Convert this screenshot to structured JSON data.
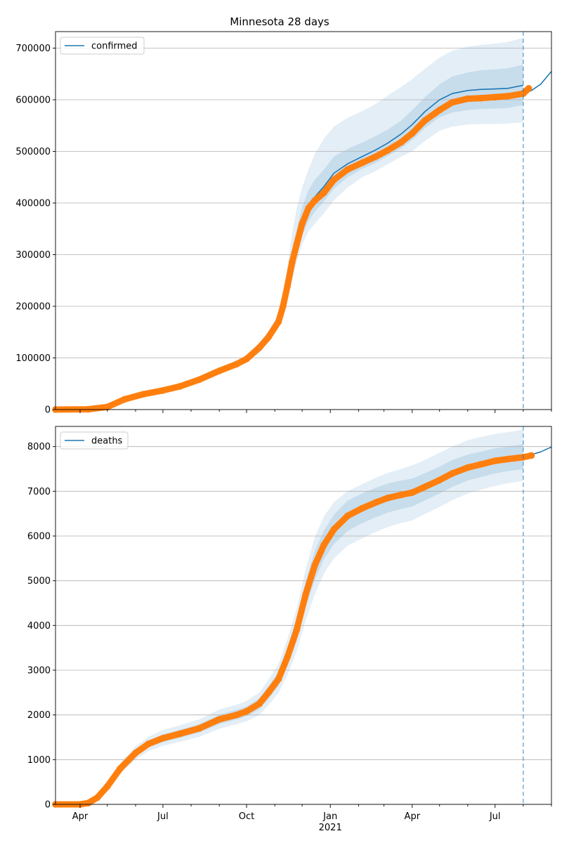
{
  "title": "Minnesota 28 days",
  "colors": {
    "model": "#1f77b4",
    "observed": "#ff7f0e",
    "band": "#1f77b4",
    "grid": "#b0b0b0",
    "today_line": "#1f77b4"
  },
  "x_axis": {
    "ticks": [
      {
        "label": "Apr",
        "date": "2020-04-01"
      },
      {
        "label": "Jul",
        "date": "2020-07-01"
      },
      {
        "label": "Oct",
        "date": "2020-10-01"
      },
      {
        "label": "Jan",
        "date": "2021-01-01"
      },
      {
        "label": "Apr",
        "date": "2021-04-01"
      },
      {
        "label": "Jul",
        "date": "2021-07-01"
      }
    ],
    "year_label": "2021",
    "range": [
      "2020-03-05",
      "2021-09-01"
    ],
    "today": "2021-08-01"
  },
  "chart_data": [
    {
      "type": "line",
      "name": "confirmed",
      "legend": "confirmed",
      "legend_position": "upper-left",
      "grid": "horizontal",
      "ylim": [
        0,
        732000
      ],
      "yticks": [
        0,
        100000,
        200000,
        300000,
        400000,
        500000,
        600000,
        700000
      ],
      "ytick_labels": [
        "0",
        "100000",
        "200000",
        "300000",
        "400000",
        "500000",
        "600000",
        "700000"
      ],
      "observed": {
        "x": [
          "2020-03-05",
          "2020-04-10",
          "2020-05-01",
          "2020-05-20",
          "2020-06-10",
          "2020-07-01",
          "2020-07-20",
          "2020-08-10",
          "2020-09-01",
          "2020-09-20",
          "2020-10-01",
          "2020-10-15",
          "2020-10-25",
          "2020-11-05",
          "2020-11-10",
          "2020-11-15",
          "2020-11-20",
          "2020-11-25",
          "2020-12-01",
          "2020-12-08",
          "2020-12-15",
          "2020-12-25",
          "2021-01-05",
          "2021-01-20",
          "2021-02-05",
          "2021-02-20",
          "2021-03-05",
          "2021-03-20",
          "2021-04-01",
          "2021-04-15",
          "2021-05-01",
          "2021-05-15",
          "2021-06-01",
          "2021-06-15",
          "2021-07-01",
          "2021-07-15",
          "2021-08-01",
          "2021-08-07"
        ],
        "y": [
          0,
          500,
          5000,
          20000,
          30000,
          37000,
          45000,
          58000,
          75000,
          88000,
          98000,
          120000,
          140000,
          170000,
          200000,
          240000,
          285000,
          320000,
          360000,
          390000,
          405000,
          420000,
          445000,
          465000,
          478000,
          490000,
          502000,
          518000,
          535000,
          560000,
          580000,
          595000,
          602000,
          603000,
          605000,
          607000,
          612000,
          622000
        ]
      },
      "model": {
        "x": [
          "2020-03-05",
          "2020-04-10",
          "2020-05-01",
          "2020-05-20",
          "2020-06-10",
          "2020-07-01",
          "2020-07-20",
          "2020-08-10",
          "2020-09-01",
          "2020-09-20",
          "2020-10-01",
          "2020-10-15",
          "2020-10-25",
          "2020-11-05",
          "2020-11-10",
          "2020-11-15",
          "2020-11-20",
          "2020-11-25",
          "2020-12-01",
          "2020-12-08",
          "2020-12-15",
          "2020-12-25",
          "2021-01-05",
          "2021-01-20",
          "2021-02-05",
          "2021-02-20",
          "2021-03-05",
          "2021-03-20",
          "2021-04-01",
          "2021-04-15",
          "2021-05-01",
          "2021-05-15",
          "2021-06-01",
          "2021-06-15",
          "2021-07-01",
          "2021-07-15",
          "2021-08-01"
        ],
        "y": [
          0,
          500,
          5000,
          20000,
          30000,
          37000,
          45000,
          58000,
          75000,
          88000,
          98000,
          120000,
          140000,
          170000,
          200000,
          240000,
          285000,
          320000,
          360000,
          393000,
          412000,
          432000,
          458000,
          476000,
          490000,
          503000,
          516000,
          534000,
          552000,
          577000,
          600000,
          612000,
          618000,
          620000,
          621000,
          622000,
          628000
        ]
      },
      "forecast": {
        "x": [
          "2021-08-01",
          "2021-08-10",
          "2021-08-20",
          "2021-09-01"
        ],
        "y": [
          611000,
          618000,
          630000,
          655000
        ]
      },
      "bands": [
        {
          "level": "outer",
          "lower": [
            0,
            400,
            4000,
            17000,
            26000,
            33000,
            41000,
            53000,
            69000,
            82000,
            92000,
            110000,
            130000,
            158000,
            185000,
            215000,
            250000,
            285000,
            320000,
            345000,
            360000,
            380000,
            405000,
            430000,
            450000,
            462000,
            475000,
            490000,
            500000,
            520000,
            540000,
            548000,
            552000,
            553000,
            553000,
            554000,
            556000
          ]
        },
        {
          "level": "outer",
          "upper": [
            0,
            600,
            6000,
            23000,
            34000,
            41000,
            50000,
            64000,
            82000,
            95000,
            106000,
            130000,
            152000,
            185000,
            225000,
            280000,
            340000,
            390000,
            430000,
            465000,
            495000,
            525000,
            548000,
            565000,
            578000,
            592000,
            608000,
            625000,
            640000,
            660000,
            682000,
            695000,
            703000,
            706000,
            709000,
            712000,
            720000
          ]
        },
        {
          "level": "mid",
          "lower": [
            0,
            450,
            4500,
            18500,
            28000,
            35000,
            43000,
            55500,
            72000,
            85000,
            95000,
            115000,
            135000,
            164000,
            192000,
            228000,
            265000,
            300000,
            338000,
            365000,
            383000,
            403000,
            428000,
            450000,
            466000,
            478000,
            491000,
            506000,
            522000,
            545000,
            566000,
            575000,
            580000,
            582000,
            583000,
            584000,
            590000
          ]
        },
        {
          "level": "mid",
          "upper": [
            0,
            550,
            5500,
            21500,
            32000,
            39000,
            47000,
            61000,
            78000,
            91000,
            102000,
            125000,
            146000,
            177000,
            212000,
            258000,
            310000,
            350000,
            392000,
            425000,
            445000,
            465000,
            490000,
            505000,
            517000,
            530000,
            542000,
            560000,
            580000,
            605000,
            630000,
            645000,
            653000,
            657000,
            659000,
            661000,
            668000
          ]
        }
      ]
    },
    {
      "type": "line",
      "name": "deaths",
      "legend": "deaths",
      "legend_position": "upper-left",
      "grid": "horizontal",
      "ylim": [
        0,
        8450
      ],
      "yticks": [
        0,
        1000,
        2000,
        3000,
        4000,
        5000,
        6000,
        7000,
        8000
      ],
      "ytick_labels": [
        "0",
        "1000",
        "2000",
        "3000",
        "4000",
        "5000",
        "6000",
        "7000",
        "8000"
      ],
      "observed": {
        "x": [
          "2020-03-05",
          "2020-04-01",
          "2020-04-10",
          "2020-04-20",
          "2020-05-01",
          "2020-05-15",
          "2020-06-01",
          "2020-06-15",
          "2020-07-01",
          "2020-07-20",
          "2020-08-10",
          "2020-09-01",
          "2020-09-20",
          "2020-10-01",
          "2020-10-15",
          "2020-10-25",
          "2020-11-05",
          "2020-11-15",
          "2020-11-25",
          "2020-12-05",
          "2020-12-15",
          "2020-12-25",
          "2021-01-05",
          "2021-01-20",
          "2021-02-05",
          "2021-02-20",
          "2021-03-05",
          "2021-03-20",
          "2021-04-01",
          "2021-04-15",
          "2021-05-01",
          "2021-05-15",
          "2021-06-01",
          "2021-06-15",
          "2021-07-01",
          "2021-07-15",
          "2021-08-01",
          "2021-08-10"
        ],
        "y": [
          0,
          0,
          30,
          150,
          400,
          800,
          1150,
          1350,
          1480,
          1580,
          1700,
          1900,
          2000,
          2080,
          2250,
          2500,
          2800,
          3300,
          3900,
          4700,
          5350,
          5800,
          6150,
          6450,
          6620,
          6750,
          6850,
          6920,
          6970,
          7100,
          7250,
          7400,
          7530,
          7600,
          7680,
          7720,
          7760,
          7800
        ]
      },
      "model": {
        "x": [
          "2021-08-01",
          "2021-08-10",
          "2021-08-20",
          "2021-09-01"
        ],
        "y": [
          7780,
          7820,
          7880,
          7990
        ]
      },
      "bands": [
        {
          "level": "outer",
          "lower": [
            0,
            0,
            25,
            120,
            330,
            680,
            1000,
            1190,
            1310,
            1400,
            1510,
            1690,
            1790,
            1860,
            2000,
            2220,
            2490,
            2900,
            3420,
            4120,
            4700,
            5160,
            5500,
            5780,
            5950,
            6090,
            6200,
            6290,
            6350,
            6490,
            6650,
            6800,
            6950,
            7030,
            7120,
            7180,
            7230
          ]
        },
        {
          "level": "outer",
          "upper": [
            0,
            0,
            35,
            180,
            470,
            920,
            1300,
            1510,
            1660,
            1770,
            1900,
            2120,
            2230,
            2310,
            2500,
            2790,
            3130,
            3700,
            4380,
            5260,
            5980,
            6440,
            6760,
            7000,
            7160,
            7300,
            7410,
            7500,
            7580,
            7700,
            7860,
            8000,
            8140,
            8210,
            8280,
            8320,
            8380
          ]
        },
        {
          "level": "mid",
          "lower": [
            0,
            0,
            27,
            135,
            360,
            740,
            1075,
            1270,
            1395,
            1490,
            1605,
            1795,
            1895,
            1970,
            2125,
            2360,
            2645,
            3100,
            3660,
            4410,
            5025,
            5480,
            5820,
            6110,
            6285,
            6420,
            6525,
            6605,
            6660,
            6795,
            6950,
            7100,
            7240,
            7315,
            7400,
            7450,
            7495
          ]
        },
        {
          "level": "mid",
          "upper": [
            0,
            0,
            33,
            165,
            440,
            860,
            1225,
            1430,
            1565,
            1670,
            1795,
            2005,
            2115,
            2190,
            2375,
            2640,
            2955,
            3500,
            4140,
            4990,
            5675,
            6120,
            6480,
            6790,
            6955,
            7080,
            7175,
            7240,
            7285,
            7405,
            7550,
            7700,
            7820,
            7885,
            7960,
            8000,
            8050
          ]
        }
      ]
    }
  ]
}
